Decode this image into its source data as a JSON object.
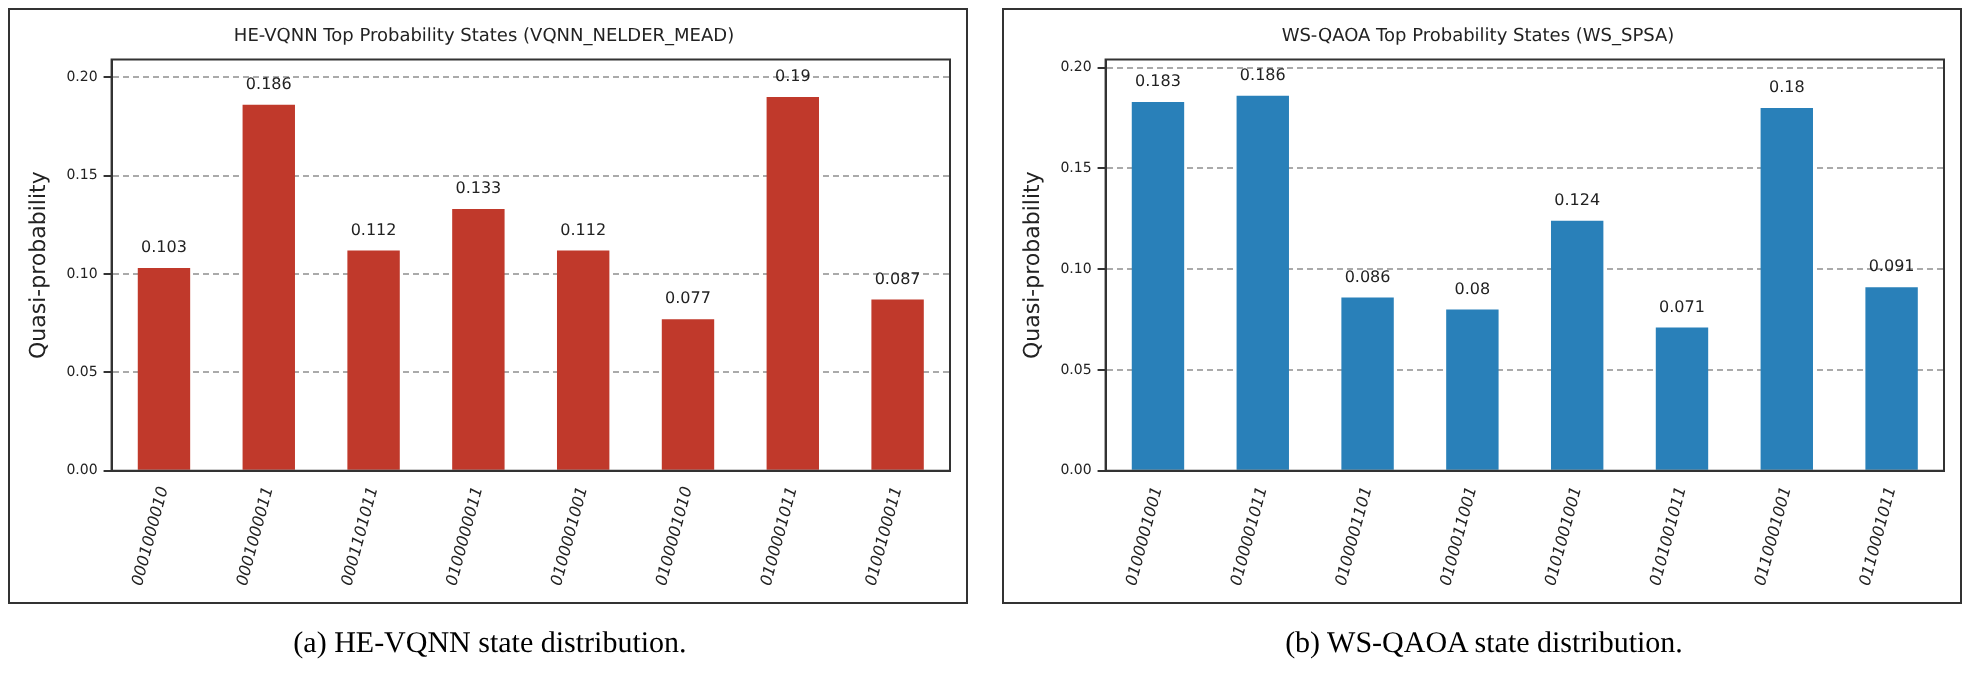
{
  "chart_data": [
    {
      "type": "bar",
      "title": "HE-VQNN Top Probability States (VQNN_NELDER_MEAD)",
      "ylabel": "Quasi-probability",
      "categories": [
        "0001000010",
        "0001000011",
        "0001101011",
        "0100000011",
        "0100001001",
        "0100001010",
        "0100001011",
        "0100100011"
      ],
      "values": [
        0.103,
        0.186,
        0.112,
        0.133,
        0.112,
        0.077,
        0.19,
        0.087
      ],
      "color": "#c0392b",
      "ylim": [
        0,
        0.209
      ],
      "yticks": [
        {
          "value": 0,
          "label": "0.00"
        },
        {
          "value": 0.05,
          "label": "0.05"
        },
        {
          "value": 0.1,
          "label": "0.10"
        },
        {
          "value": 0.15,
          "label": "0.15"
        },
        {
          "value": 0.2,
          "label": "0.20"
        }
      ],
      "grid": "y",
      "data_labels": true,
      "annotations": [
        "(a) HE-VQNN state distribution."
      ]
    },
    {
      "type": "bar",
      "title": "WS-QAOA Top Probability States (WS_SPSA)",
      "ylabel": "Quasi-probability",
      "categories": [
        "0100001001",
        "0100001011",
        "0100001101",
        "0100011001",
        "0101001001",
        "0101001011",
        "0110001001",
        "0110001011"
      ],
      "values": [
        0.183,
        0.186,
        0.086,
        0.08,
        0.124,
        0.071,
        0.18,
        0.091
      ],
      "color": "#2980b9",
      "ylim": [
        0,
        0.204
      ],
      "yticks": [
        {
          "value": 0,
          "label": "0.00"
        },
        {
          "value": 0.05,
          "label": "0.05"
        },
        {
          "value": 0.1,
          "label": "0.10"
        },
        {
          "value": 0.15,
          "label": "0.15"
        },
        {
          "value": 0.2,
          "label": "0.20"
        }
      ],
      "grid": "y",
      "data_labels": true,
      "annotations": [
        "(b) WS-QAOA state distribution."
      ]
    }
  ]
}
